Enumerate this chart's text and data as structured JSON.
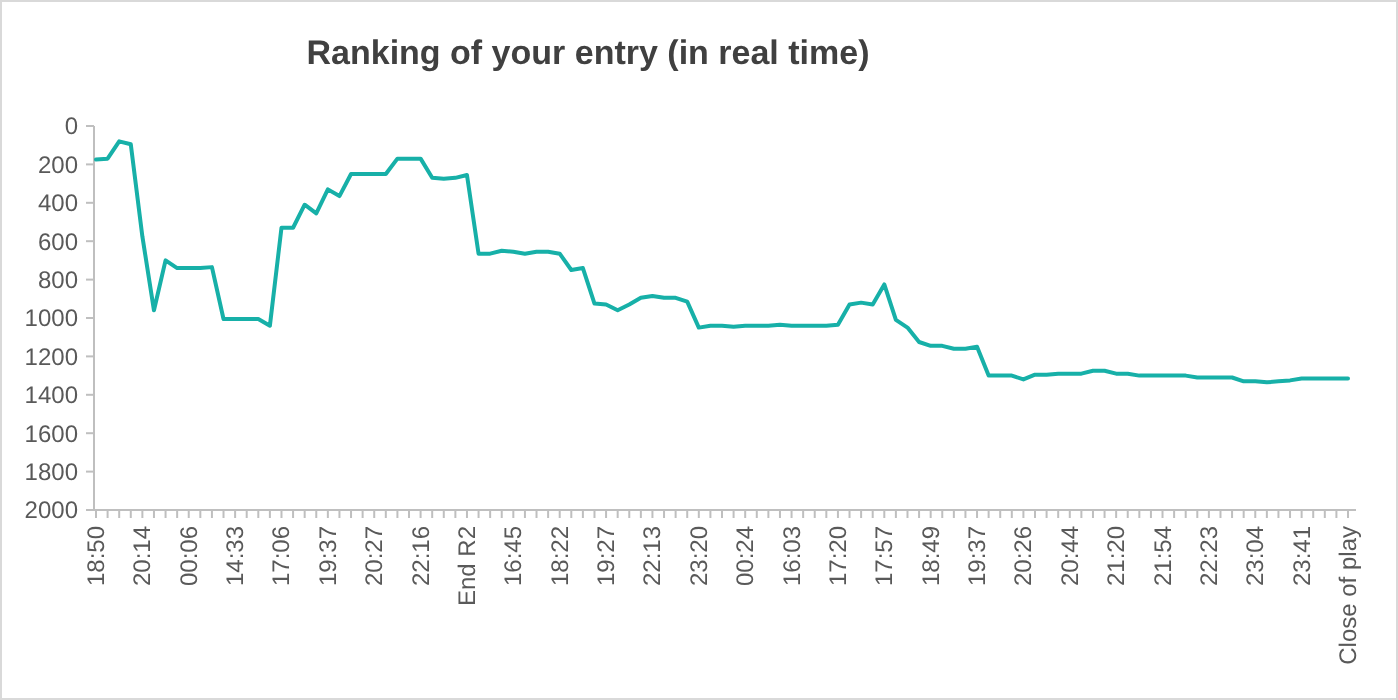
{
  "chart_data": {
    "type": "line",
    "title": "Ranking of your entry (in real time)",
    "categories": [
      "18:50",
      null,
      null,
      null,
      "20:14",
      null,
      null,
      null,
      "00:06",
      null,
      null,
      null,
      "14:33",
      null,
      null,
      null,
      "17:06",
      null,
      null,
      null,
      "19:37",
      null,
      null,
      null,
      "20:27",
      null,
      null,
      null,
      "22:16",
      null,
      null,
      null,
      "End R2",
      null,
      null,
      null,
      "16:45",
      null,
      null,
      null,
      "18:22",
      null,
      null,
      null,
      "19:27",
      null,
      null,
      null,
      "22:13",
      null,
      null,
      null,
      "23:20",
      null,
      null,
      null,
      "00:24",
      null,
      null,
      null,
      "16:03",
      null,
      null,
      null,
      "17:20",
      null,
      null,
      null,
      "17:57",
      null,
      null,
      null,
      "18:49",
      null,
      null,
      null,
      "19:37",
      null,
      null,
      null,
      "20:26",
      null,
      null,
      null,
      "20:44",
      null,
      null,
      null,
      "21:20",
      null,
      null,
      null,
      "21:54",
      null,
      null,
      null,
      "22:23",
      null,
      null,
      null,
      "23:04",
      null,
      null,
      null,
      "23:41",
      null,
      null,
      null,
      "Close of play"
    ],
    "series": [
      {
        "color": "#17b0a8",
        "values": [
          175,
          170,
          80,
          95,
          575,
          960,
          700,
          740,
          740,
          740,
          735,
          1005,
          1005,
          1005,
          1005,
          1040,
          530,
          530,
          410,
          455,
          330,
          365,
          250,
          250,
          250,
          250,
          170,
          170,
          170,
          270,
          275,
          270,
          255,
          665,
          665,
          650,
          655,
          665,
          655,
          655,
          665,
          750,
          740,
          925,
          930,
          960,
          930,
          895,
          885,
          895,
          895,
          915,
          1050,
          1040,
          1040,
          1045,
          1040,
          1040,
          1040,
          1035,
          1040,
          1040,
          1040,
          1040,
          1035,
          930,
          920,
          930,
          825,
          1010,
          1050,
          1125,
          1145,
          1145,
          1160,
          1160,
          1150,
          1300,
          1300,
          1300,
          1320,
          1295,
          1295,
          1290,
          1290,
          1290,
          1275,
          1275,
          1290,
          1290,
          1300,
          1300,
          1300,
          1300,
          1300,
          1310,
          1310,
          1310,
          1310,
          1330,
          1330,
          1335,
          1330,
          1325,
          1315,
          1315,
          1315,
          1315,
          1315
        ]
      }
    ],
    "ylim": [
      2000,
      0
    ],
    "yticks": [
      0,
      200,
      400,
      600,
      800,
      1000,
      1200,
      1400,
      1600,
      1800,
      2000
    ],
    "grid": false,
    "marker": "none",
    "line_style": "solid"
  }
}
